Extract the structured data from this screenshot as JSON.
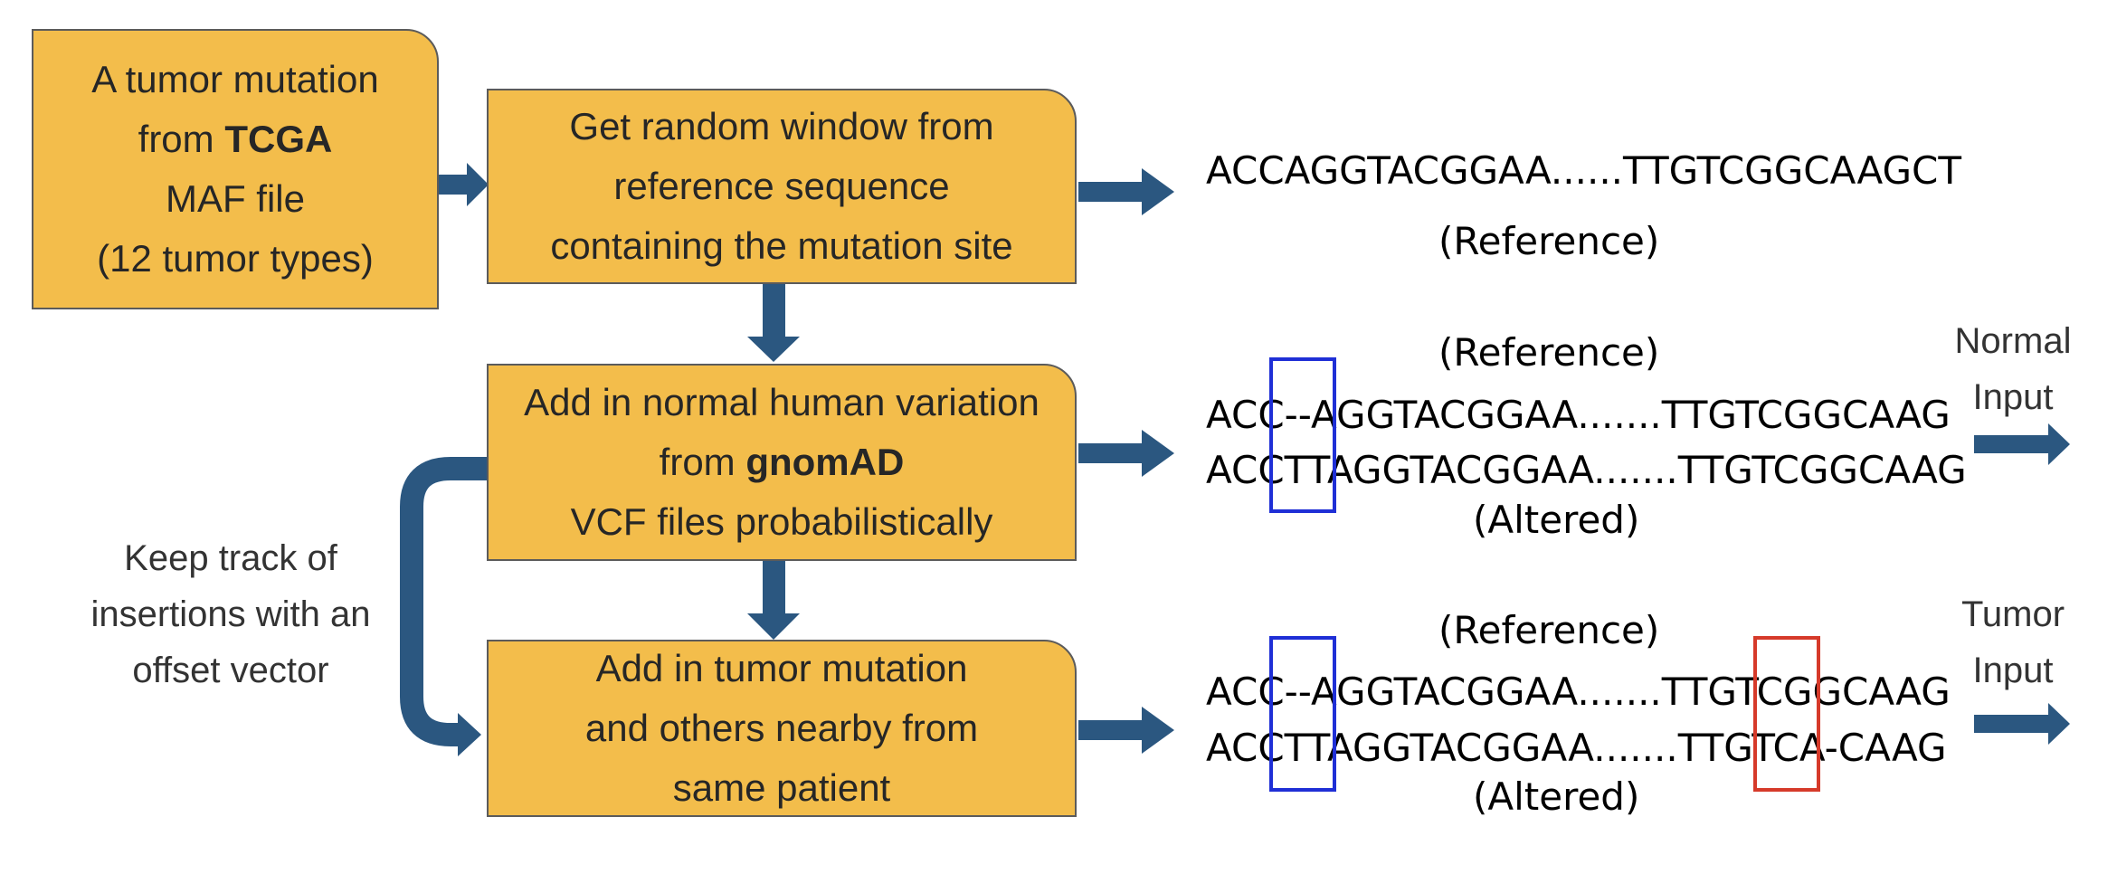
{
  "boxes": {
    "tcga": {
      "line1": "A tumor mutation",
      "line2_pre": "from ",
      "line2_bold": "TCGA",
      "line3": "MAF file",
      "line4": "(12 tumor types)"
    },
    "window": {
      "line1": "Get random window from",
      "line2": "reference sequence",
      "line3": "containing the mutation site"
    },
    "gnomad": {
      "line1": "Add in normal human variation",
      "line2_pre": "from ",
      "line2_bold": "gnomAD",
      "line3": "VCF files probabilistically"
    },
    "tumor": {
      "line1": "Add in tumor mutation",
      "line2": "and others nearby from",
      "line3": "same patient"
    }
  },
  "side_note": {
    "line1": "Keep track of",
    "line2": "insertions with an",
    "line3": "offset vector"
  },
  "row1": {
    "sequence": "ACCAGGTACGGAA......TTGTCGGCAAGCT",
    "label": "(Reference)"
  },
  "row2": {
    "ref_label": "(Reference)",
    "ref_sequence": "ACC--AGGTACGGAA.......TTGTCGGCAAG",
    "alt_sequence": "ACCTTAGGTACGGAA.......TTGTCGGCAAG",
    "alt_label": "(Altered)",
    "output_line1": "Normal",
    "output_line2": "Input"
  },
  "row3": {
    "ref_label": "(Reference)",
    "ref_sequence": "ACC--AGGTACGGAA.......TTGTCGGCAAG",
    "alt_sequence": "ACCTTAGGTACGGAA.......TTGTCA-CAAG",
    "alt_label": "(Altered)",
    "output_line1": "Tumor",
    "output_line2": "Input"
  },
  "colors": {
    "box_fill": "#f3bd4b",
    "arrow": "#2b5780",
    "insertion_highlight": "#1f2fd6",
    "mutation_highlight": "#d63a2a"
  }
}
